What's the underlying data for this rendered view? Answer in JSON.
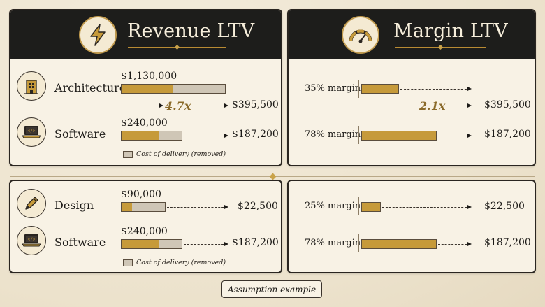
{
  "revenue_header": {
    "title": "Revenue LTV",
    "icon": "lightning-bolt-icon"
  },
  "margin_header": {
    "title": "Margin LTV",
    "icon": "gauge-icon"
  },
  "colors": {
    "gold": "#c69a3a",
    "gray": "#cfc6b6",
    "dark": "#1d1d1b",
    "paper": "#f8f2e5"
  },
  "top": {
    "architecture": {
      "label": "Architecture",
      "icon": "building-icon",
      "revenue": "$1,130,000",
      "revenue_value": 1130000,
      "margin_share": 0.35,
      "multiplier": "4.7x",
      "result": "$395,500",
      "margin_label": "35% margin"
    },
    "software": {
      "label": "Software",
      "icon": "laptop-code-icon",
      "revenue": "$240,000",
      "revenue_value": 240000,
      "margin_share": 0.78,
      "result": "$187,200",
      "margin_label": "78% margin"
    },
    "margin_multiplier": "2.1x",
    "margin_result_mid": "$395,500",
    "margin_result_bottom": "$187,200",
    "legend": "Cost of delivery (removed)"
  },
  "bottom": {
    "design": {
      "label": "Design",
      "icon": "pencil-icon",
      "revenue": "$90,000",
      "revenue_value": 90000,
      "margin_share": 0.25,
      "result": "$22,500",
      "margin_label": "25% margin"
    },
    "software": {
      "label": "Software",
      "icon": "laptop-code-icon",
      "revenue": "$240,000",
      "revenue_value": 240000,
      "margin_share": 0.78,
      "result": "$187,200",
      "margin_label": "78% margin"
    },
    "legend": "Cost of delivery (removed)"
  },
  "footer": "Assumption example"
}
